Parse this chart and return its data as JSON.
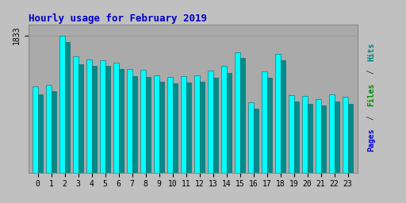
{
  "title": "Hourly usage for February 2019",
  "hours": [
    0,
    1,
    2,
    3,
    4,
    5,
    6,
    7,
    8,
    9,
    10,
    11,
    12,
    13,
    14,
    15,
    16,
    17,
    18,
    19,
    20,
    21,
    22,
    23
  ],
  "hits": [
    1150,
    1170,
    1833,
    1550,
    1510,
    1500,
    1470,
    1385,
    1370,
    1295,
    1275,
    1285,
    1295,
    1360,
    1430,
    1610,
    940,
    1355,
    1590,
    1030,
    1020,
    985,
    1040,
    1010
  ],
  "files": [
    1080,
    1120,
    1780,
    1490,
    1460,
    1450,
    1420,
    1330,
    1320,
    1250,
    1230,
    1245,
    1255,
    1310,
    1380,
    1575,
    890,
    1310,
    1545,
    985,
    960,
    940,
    990,
    960
  ],
  "pages": [
    1040,
    1085,
    1740,
    1450,
    1430,
    1425,
    1380,
    1290,
    1280,
    1215,
    1190,
    1205,
    1215,
    1265,
    1335,
    1535,
    850,
    1270,
    1505,
    945,
    920,
    900,
    950,
    920
  ],
  "ylim_max": 1980,
  "ytick_val": 1833,
  "bg_color": "#c0c0c0",
  "plot_bg_color": "#aaaaaa",
  "bar_color_cyan": "#00ffff",
  "bar_color_teal": "#008b8b",
  "bar_edge_color": "#006666",
  "title_color": "#0000cc",
  "grid_color": "#999999",
  "tick_fontsize": 7,
  "title_fontsize": 9
}
